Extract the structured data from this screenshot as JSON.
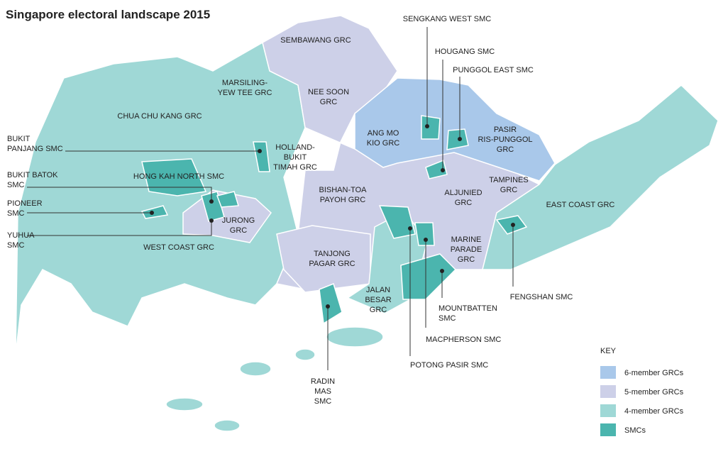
{
  "title": "Singapore electoral landscape 2015",
  "labels": [
    {
      "lines": [
        "SEMBAWANG GRC"
      ]
    },
    {
      "lines": [
        "MARSILING-",
        "YEW TEE GRC"
      ]
    },
    {
      "lines": [
        "NEE SOON",
        "GRC"
      ]
    },
    {
      "lines": [
        "CHUA CHU KANG GRC"
      ]
    },
    {
      "lines": [
        "ANG MO",
        "KIO GRC"
      ]
    },
    {
      "lines": [
        "PASIR",
        "RIS-PUNGGOL",
        "GRC"
      ]
    },
    {
      "lines": [
        "HOLLAND-",
        "BUKIT",
        "TIMAH GRC"
      ]
    },
    {
      "lines": [
        "HONG KAH NORTH SMC"
      ]
    },
    {
      "lines": [
        "BISHAN-TOA",
        "PAYOH GRC"
      ]
    },
    {
      "lines": [
        "ALJUNIED",
        "GRC"
      ]
    },
    {
      "lines": [
        "TAMPINES",
        "GRC"
      ]
    },
    {
      "lines": [
        "EAST COAST GRC"
      ]
    },
    {
      "lines": [
        "JURONG",
        "GRC"
      ]
    },
    {
      "lines": [
        "WEST COAST GRC"
      ]
    },
    {
      "lines": [
        "TANJONG",
        "PAGAR GRC"
      ]
    },
    {
      "lines": [
        "MARINE",
        "PARADE",
        "GRC"
      ]
    },
    {
      "lines": [
        "JALAN",
        "BESAR",
        "GRC"
      ]
    },
    {
      "lines": [
        "SENGKANG WEST SMC"
      ]
    },
    {
      "lines": [
        "HOUGANG SMC"
      ]
    },
    {
      "lines": [
        "PUNGGOL EAST SMC"
      ]
    },
    {
      "lines": [
        "BUKIT",
        "PANJANG SMC"
      ]
    },
    {
      "lines": [
        "BUKIT BATOK",
        "SMC"
      ]
    },
    {
      "lines": [
        "PIONEER",
        "SMC"
      ]
    },
    {
      "lines": [
        "YUHUA",
        "SMC"
      ]
    },
    {
      "lines": [
        "FENGSHAN SMC"
      ]
    },
    {
      "lines": [
        "MOUNTBATTEN",
        "SMC"
      ]
    },
    {
      "lines": [
        "MACPHERSON SMC"
      ]
    },
    {
      "lines": [
        "POTONG PASIR SMC"
      ]
    },
    {
      "lines": [
        "RADIN",
        "MAS",
        "SMC"
      ]
    }
  ],
  "key": {
    "title": "KEY",
    "items": [
      {
        "label": "6-member GRCs",
        "color": "#a9c8ea"
      },
      {
        "label": "5-member GRCs",
        "color": "#cdd0e8"
      },
      {
        "label": "4-member GRCs",
        "color": "#9fd8d6"
      },
      {
        "label": "SMCs",
        "color": "#4bb5ae"
      }
    ]
  }
}
